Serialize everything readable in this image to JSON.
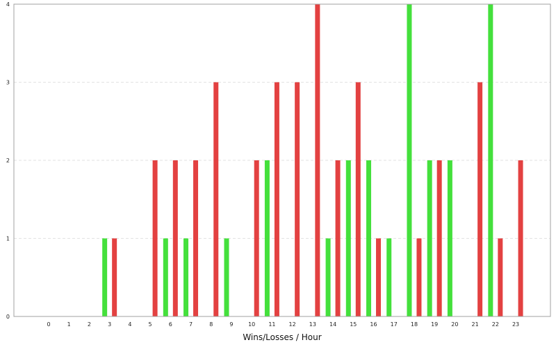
{
  "chart_data": {
    "type": "bar",
    "xlabel": "Wins/Losses / Hour",
    "ylabel": "",
    "ylim": [
      0,
      4
    ],
    "yticks": [
      0,
      1,
      2,
      3,
      4
    ],
    "grid": true,
    "categories": [
      "0",
      "1",
      "2",
      "3",
      "4",
      "5",
      "6",
      "7",
      "8",
      "9",
      "10",
      "11",
      "12",
      "13",
      "14",
      "15",
      "16",
      "17",
      "18",
      "19",
      "20",
      "21",
      "22",
      "23"
    ],
    "series": [
      {
        "key": "wins",
        "color": "#44e03c",
        "values": [
          0,
          0,
          0,
          1,
          0,
          0,
          1,
          1,
          0,
          1,
          0,
          2,
          0,
          0,
          1,
          2,
          2,
          1,
          4,
          2,
          2,
          0,
          4,
          0
        ]
      },
      {
        "key": "losses",
        "color": "#e34141",
        "values": [
          0,
          0,
          0,
          1,
          0,
          2,
          2,
          2,
          3,
          0,
          2,
          3,
          3,
          4,
          2,
          3,
          1,
          0,
          1,
          2,
          0,
          3,
          1,
          2
        ]
      }
    ],
    "colors": {
      "grid": "#e2e2e2",
      "frame": "#a0a0a0"
    }
  }
}
